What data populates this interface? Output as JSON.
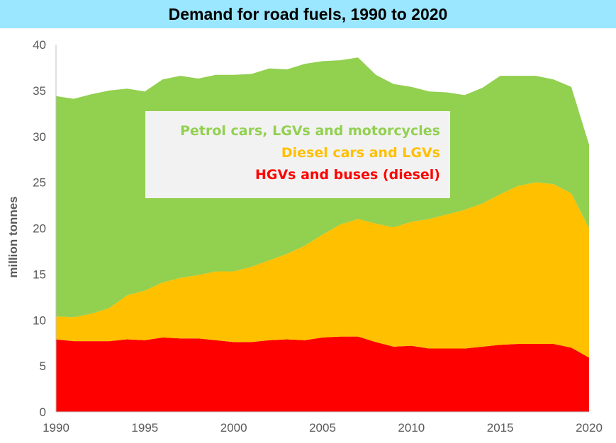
{
  "title": "Demand for road fuels, 1990 to 2020",
  "chart_data": {
    "type": "area",
    "stacked": true,
    "title": "Demand for road fuels, 1990 to 2020",
    "xlabel": "",
    "ylabel": "million tonnes",
    "x": [
      1990,
      1991,
      1992,
      1993,
      1994,
      1995,
      1996,
      1997,
      1998,
      1999,
      2000,
      2001,
      2002,
      2003,
      2004,
      2005,
      2006,
      2007,
      2008,
      2009,
      2010,
      2011,
      2012,
      2013,
      2014,
      2015,
      2016,
      2017,
      2018,
      2019,
      2020
    ],
    "xlim": [
      1990,
      2020
    ],
    "ylim": [
      0,
      40
    ],
    "x_ticks": [
      1990,
      1995,
      2000,
      2005,
      2010,
      2015,
      2020
    ],
    "y_ticks": [
      0,
      5,
      10,
      15,
      20,
      25,
      30,
      35,
      40
    ],
    "grid": false,
    "legend_position": "upper-left inside plot",
    "series": [
      {
        "name": "HGVs and buses (diesel)",
        "color": "#ff0000",
        "values": [
          7.9,
          7.7,
          7.7,
          7.7,
          7.9,
          7.8,
          8.1,
          8.0,
          8.0,
          7.8,
          7.6,
          7.6,
          7.8,
          7.9,
          7.8,
          8.1,
          8.2,
          8.2,
          7.6,
          7.1,
          7.2,
          6.9,
          6.9,
          6.9,
          7.1,
          7.3,
          7.4,
          7.4,
          7.4,
          7.0,
          5.9
        ]
      },
      {
        "name": "Diesel cars and LGVs",
        "color": "#ffc000",
        "values": [
          2.5,
          2.6,
          3.0,
          3.6,
          4.8,
          5.4,
          6.0,
          6.6,
          6.9,
          7.5,
          7.7,
          8.2,
          8.7,
          9.3,
          10.3,
          11.2,
          12.2,
          12.8,
          12.9,
          13.0,
          13.5,
          14.1,
          14.6,
          15.1,
          15.6,
          16.4,
          17.2,
          17.6,
          17.4,
          16.8,
          14.1
        ]
      },
      {
        "name": "Petrol cars, LGVs and motorcycles",
        "color": "#92d050",
        "values": [
          24.0,
          23.8,
          23.9,
          23.7,
          22.5,
          21.7,
          22.1,
          22.0,
          21.4,
          21.4,
          21.4,
          21.0,
          20.9,
          20.1,
          19.8,
          18.9,
          17.9,
          17.6,
          16.2,
          15.6,
          14.7,
          13.9,
          13.3,
          12.5,
          12.6,
          12.9,
          12.0,
          11.6,
          11.4,
          11.6,
          9.1
        ]
      }
    ],
    "legend": [
      {
        "label": "Petrol cars, LGVs and motorcycles",
        "color": "#92d050"
      },
      {
        "label": "Diesel cars and LGVs",
        "color": "#ffc000"
      },
      {
        "label": "HGVs and buses (diesel)",
        "color": "#ff0000"
      }
    ]
  }
}
